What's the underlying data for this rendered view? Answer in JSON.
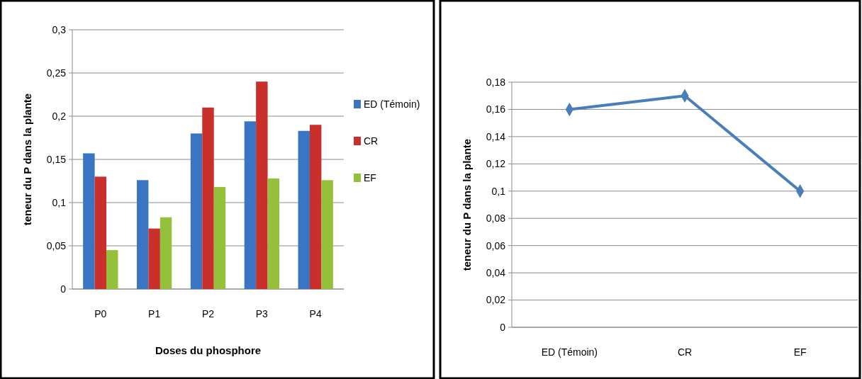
{
  "chart_data": [
    {
      "type": "bar",
      "xlabel": "Doses du phosphore",
      "ylabel": "teneur du P dans la plante",
      "categories": [
        "P0",
        "P1",
        "P2",
        "P3",
        "P4"
      ],
      "series": [
        {
          "name": "ED (Témoin)",
          "color": "#3a75c4",
          "values": [
            0.157,
            0.126,
            0.18,
            0.194,
            0.183
          ]
        },
        {
          "name": "CR",
          "color": "#c9302c",
          "values": [
            0.13,
            0.07,
            0.21,
            0.24,
            0.19
          ]
        },
        {
          "name": "EF",
          "color": "#94c03c",
          "values": [
            0.045,
            0.083,
            0.118,
            0.128,
            0.126
          ]
        }
      ],
      "ylim": [
        0,
        0.3
      ],
      "yticks": [
        {
          "value": 0,
          "label": "0"
        },
        {
          "value": 0.05,
          "label": "0,05"
        },
        {
          "value": 0.1,
          "label": "0,1"
        },
        {
          "value": 0.15,
          "label": "0,15"
        },
        {
          "value": 0.2,
          "label": "0,2"
        },
        {
          "value": 0.25,
          "label": "0,25"
        },
        {
          "value": 0.3,
          "label": "0,3"
        }
      ],
      "grid": "y",
      "legend": "right"
    },
    {
      "type": "line",
      "ylabel": "teneur du P dans la plante",
      "categories": [
        "ED (Témoin)",
        "CR",
        "EF"
      ],
      "series": [
        {
          "color": "#4a7ebb",
          "values": [
            0.16,
            0.17,
            0.1
          ]
        }
      ],
      "ylim": [
        0,
        0.18
      ],
      "yticks": [
        {
          "value": 0,
          "label": "0"
        },
        {
          "value": 0.02,
          "label": "0,02"
        },
        {
          "value": 0.04,
          "label": "0,04"
        },
        {
          "value": 0.06,
          "label": "0,06"
        },
        {
          "value": 0.08,
          "label": "0,08"
        },
        {
          "value": 0.1,
          "label": "0,1"
        },
        {
          "value": 0.12,
          "label": "0,12"
        },
        {
          "value": 0.14,
          "label": "0,14"
        },
        {
          "value": 0.16,
          "label": "0,16"
        },
        {
          "value": 0.18,
          "label": "0,18"
        }
      ],
      "grid": "y",
      "marker": "diamond",
      "line_style": "solid"
    }
  ]
}
